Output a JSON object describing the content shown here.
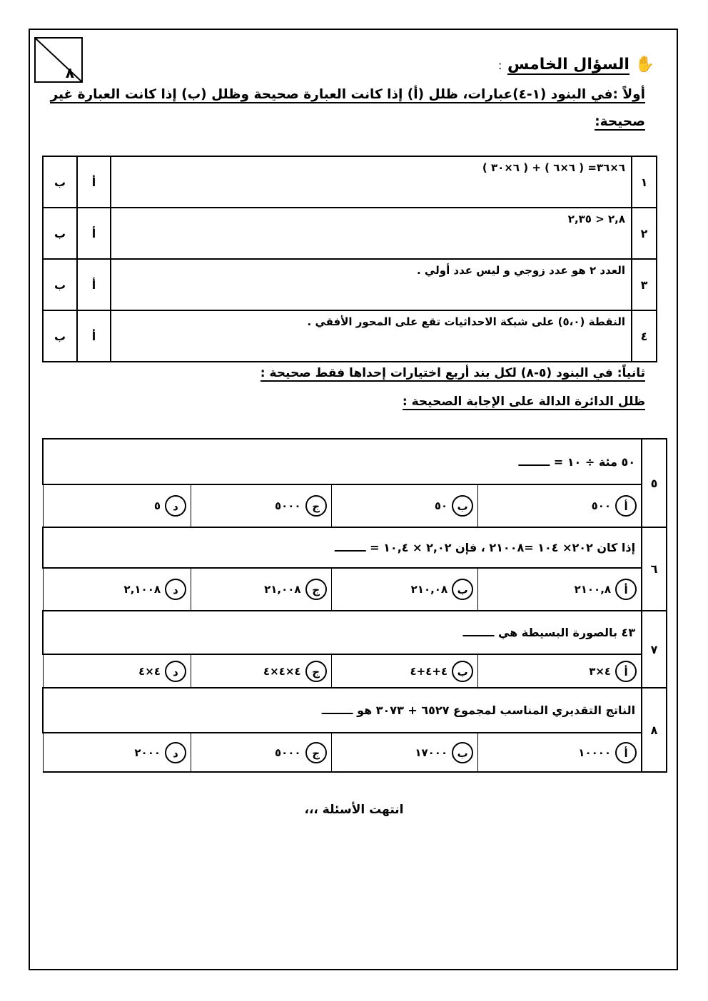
{
  "score_box": {
    "value": "٨"
  },
  "header": {
    "title": "السؤال الخامس",
    "title_colon": ":",
    "icon": "hand-icon",
    "part1_instruction_line1": "أولاً :في البنود (١-٤)عبارات، ظلل (أ) إذا كانت العبارة صحيحة وظلل (ب) إذا كانت العبارة غير",
    "part1_instruction_line2": "صحيحة:"
  },
  "part1": {
    "choice_a": "أ",
    "choice_b": "ب",
    "items": [
      {
        "num": "١",
        "text": "٦×٣٦= ( ٦×٦ ) + ( ٦×٣٠ )"
      },
      {
        "num": "٢",
        "text": "٢,٨ < ٢,٣٥"
      },
      {
        "num": "٣",
        "text": "العدد ٢ هو عدد زوجي و ليس عدد أولي ."
      },
      {
        "num": "٤",
        "text": "النقطة (٥،٠) على شبكة الاحداثيات تقع على المحور الأفقي ."
      }
    ]
  },
  "part2": {
    "instruction_line1": "ثانياً: في البنود (٥-٨) لكل بند أربع اختيارات إحداها فقط صحيحة :",
    "instruction_line2": "ظلل الدائرة الدالة على الإجابة الصحيحة :",
    "items": [
      {
        "num": "٥",
        "question": "٥٠ مئة ÷ ١٠ = ــــــــ",
        "options": [
          {
            "letter": "أ",
            "value": "٥٠٠"
          },
          {
            "letter": "ب",
            "value": "٥٠"
          },
          {
            "letter": "ج",
            "value": "٥٠٠٠"
          },
          {
            "letter": "د",
            "value": "٥"
          }
        ]
      },
      {
        "num": "٦",
        "question": "إذا كان ٢٠٢× ١٠٤ =٢١٠٠٨ ، فإن ٢,٠٢ × ١٠,٤ = ــــــــ",
        "options": [
          {
            "letter": "أ",
            "value": "٢١٠٠,٨"
          },
          {
            "letter": "ب",
            "value": "٢١٠,٠٨"
          },
          {
            "letter": "ج",
            "value": "٢١,٠٠٨"
          },
          {
            "letter": "د",
            "value": "٢,١٠٠٨"
          }
        ]
      },
      {
        "num": "٧",
        "question": "٤٣ بالصورة البسيطة هي ــــــــ",
        "options": [
          {
            "letter": "أ",
            "value": "٤×٣"
          },
          {
            "letter": "ب",
            "value": "٤+٤+٤"
          },
          {
            "letter": "ج",
            "value": "٤×٤×٤"
          },
          {
            "letter": "د",
            "value": "٤×٤"
          }
        ]
      },
      {
        "num": "٨",
        "question": "الناتج التقديري المناسب لمجموع ٦٥٢٧ + ٣٠٧٣ هو ــــــــ",
        "options": [
          {
            "letter": "أ",
            "value": "١٠٠٠٠"
          },
          {
            "letter": "ب",
            "value": "١٧٠٠٠"
          },
          {
            "letter": "ج",
            "value": "٥٠٠٠"
          },
          {
            "letter": "د",
            "value": "٢٠٠٠"
          }
        ]
      }
    ]
  },
  "footer": {
    "text": "انتهت الأسئلة ،،،"
  }
}
